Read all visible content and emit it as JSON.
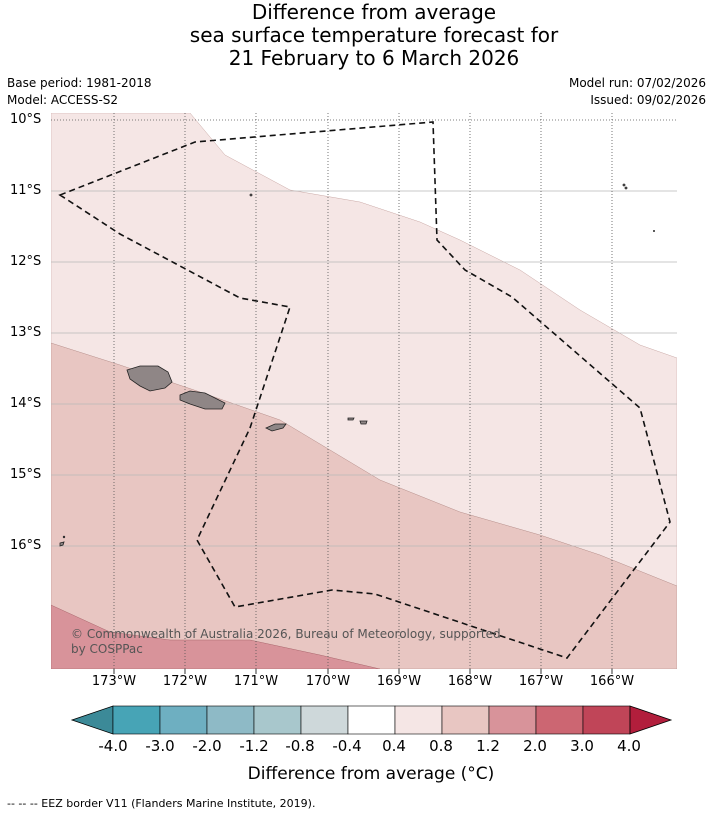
{
  "title": {
    "line1": "Difference from average",
    "line2": "sea surface temperature forecast for",
    "line3": "21 February to 6 March 2026"
  },
  "meta": {
    "base_period": "Base period: 1981-2018",
    "model": "Model: ACCESS-S2",
    "model_run": "Model run: 07/02/2026",
    "issued": "Issued: 09/02/2026"
  },
  "map": {
    "lat_labels": [
      "10°S",
      "11°S",
      "12°S",
      "13°S",
      "14°S",
      "15°S",
      "16°S"
    ],
    "lon_labels": [
      "173°W",
      "172°W",
      "171°W",
      "170°W",
      "169°W",
      "168°W",
      "167°W",
      "166°W"
    ],
    "copyright_line1": "© Commonwealth of Australia 2026, Bureau of Meteorology, supported",
    "copyright_line2": "by COSPPac",
    "fill_colors": {
      "range_0_4_to_0_8": "#f5e6e5",
      "range_0_8_to_1_2": "#e8c6c2",
      "range_1_2_to_2_0": "#d8939a",
      "land": "#8f8686"
    }
  },
  "colorbar": {
    "labels": [
      "-4.0",
      "-3.0",
      "-2.0",
      "-1.2",
      "-0.8",
      "-0.4",
      "0.4",
      "0.8",
      "1.2",
      "2.0",
      "3.0",
      "4.0"
    ],
    "colors": [
      "#3c8a98",
      "#47a4b6",
      "#6eafc1",
      "#8ebac6",
      "#a8c7cc",
      "#ced8da",
      "#ffffff",
      "#f5e6e5",
      "#e8c6c2",
      "#d8939a",
      "#cc6672",
      "#c04558",
      "#b21e3c"
    ],
    "title": "Difference from average (°C)"
  },
  "footer": {
    "text": "--  --  -- EEZ border V11 (Flanders Marine Institute, 2019)."
  }
}
